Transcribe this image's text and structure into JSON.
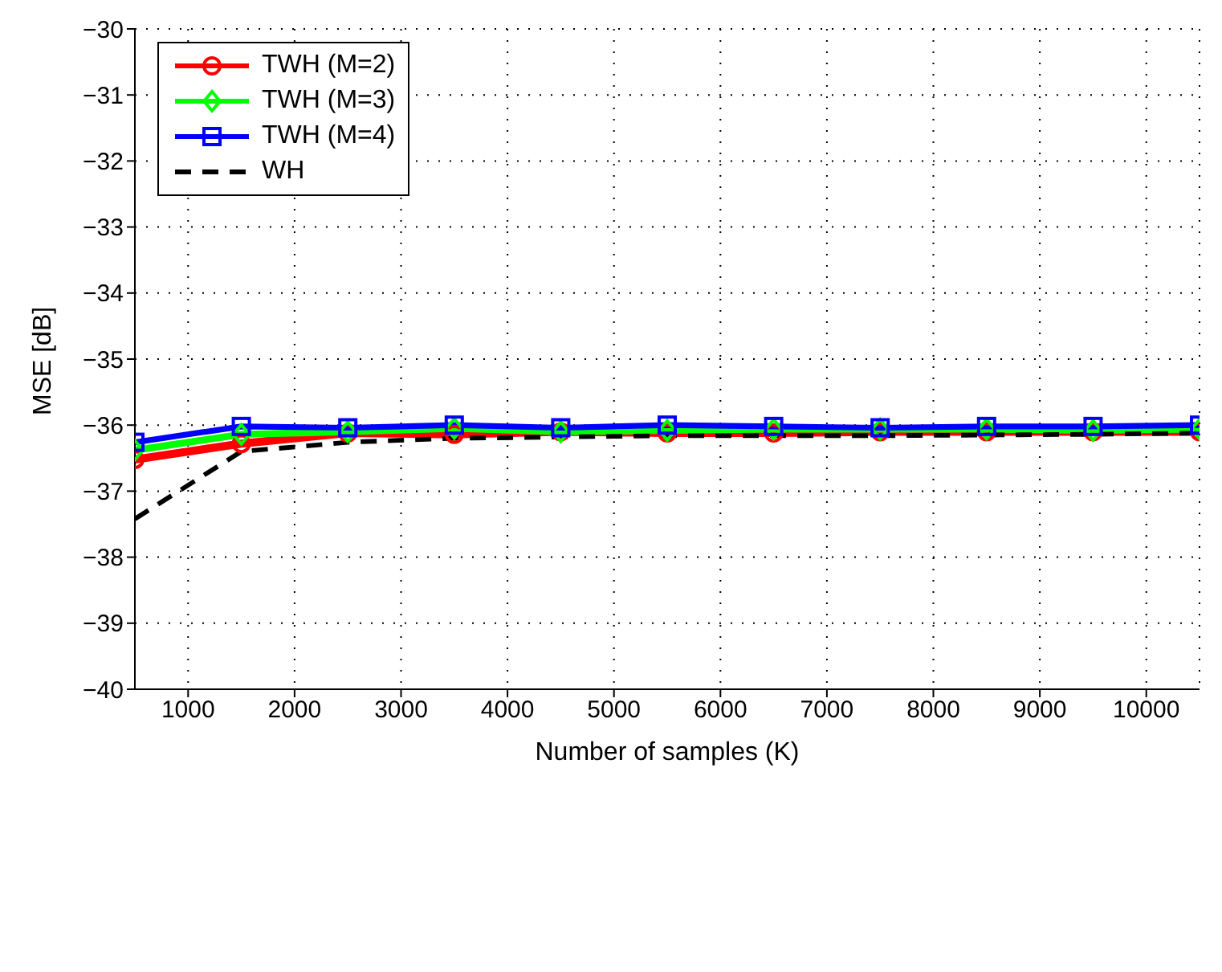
{
  "chart_data": {
    "type": "line",
    "xlabel": "Number of samples (K)",
    "ylabel": "MSE [dB]",
    "x": [
      500,
      1500,
      2500,
      3500,
      4500,
      5500,
      6500,
      7500,
      8500,
      9500,
      10500
    ],
    "xlim": [
      500,
      10500
    ],
    "xticks": [
      1000,
      2000,
      3000,
      4000,
      5000,
      6000,
      7000,
      8000,
      9000,
      10000
    ],
    "ylim": [
      -40,
      -30
    ],
    "yticks": [
      -40,
      -39,
      -38,
      -37,
      -36,
      -35,
      -34,
      -33,
      -32,
      -31,
      -30
    ],
    "grid": true,
    "legend": "top left",
    "series": [
      {
        "name": "TWH (M=2)",
        "color": "#ff0000",
        "marker": "circle",
        "line_style": "solid",
        "values": [
          -36.52,
          -36.28,
          -36.12,
          -36.14,
          -36.1,
          -36.12,
          -36.12,
          -36.1,
          -36.1,
          -36.1,
          -36.1
        ]
      },
      {
        "name": "TWH (M=3)",
        "color": "#00ff00",
        "marker": "diamond",
        "line_style": "solid",
        "values": [
          -36.38,
          -36.14,
          -36.1,
          -36.05,
          -36.1,
          -36.08,
          -36.06,
          -36.06,
          -36.06,
          -36.08,
          -36.06
        ]
      },
      {
        "name": "TWH (M=4)",
        "color": "#0000ff",
        "marker": "square",
        "line_style": "solid",
        "values": [
          -36.26,
          -36.02,
          -36.04,
          -36.0,
          -36.04,
          -36.0,
          -36.02,
          -36.04,
          -36.02,
          -36.02,
          -36.0
        ]
      },
      {
        "name": "WH",
        "color": "#000000",
        "marker": "none",
        "line_style": "dashed",
        "values": [
          -37.42,
          -36.4,
          -36.26,
          -36.2,
          -36.18,
          -36.16,
          -36.16,
          -36.16,
          -36.15,
          -36.14,
          -36.12
        ]
      }
    ]
  }
}
